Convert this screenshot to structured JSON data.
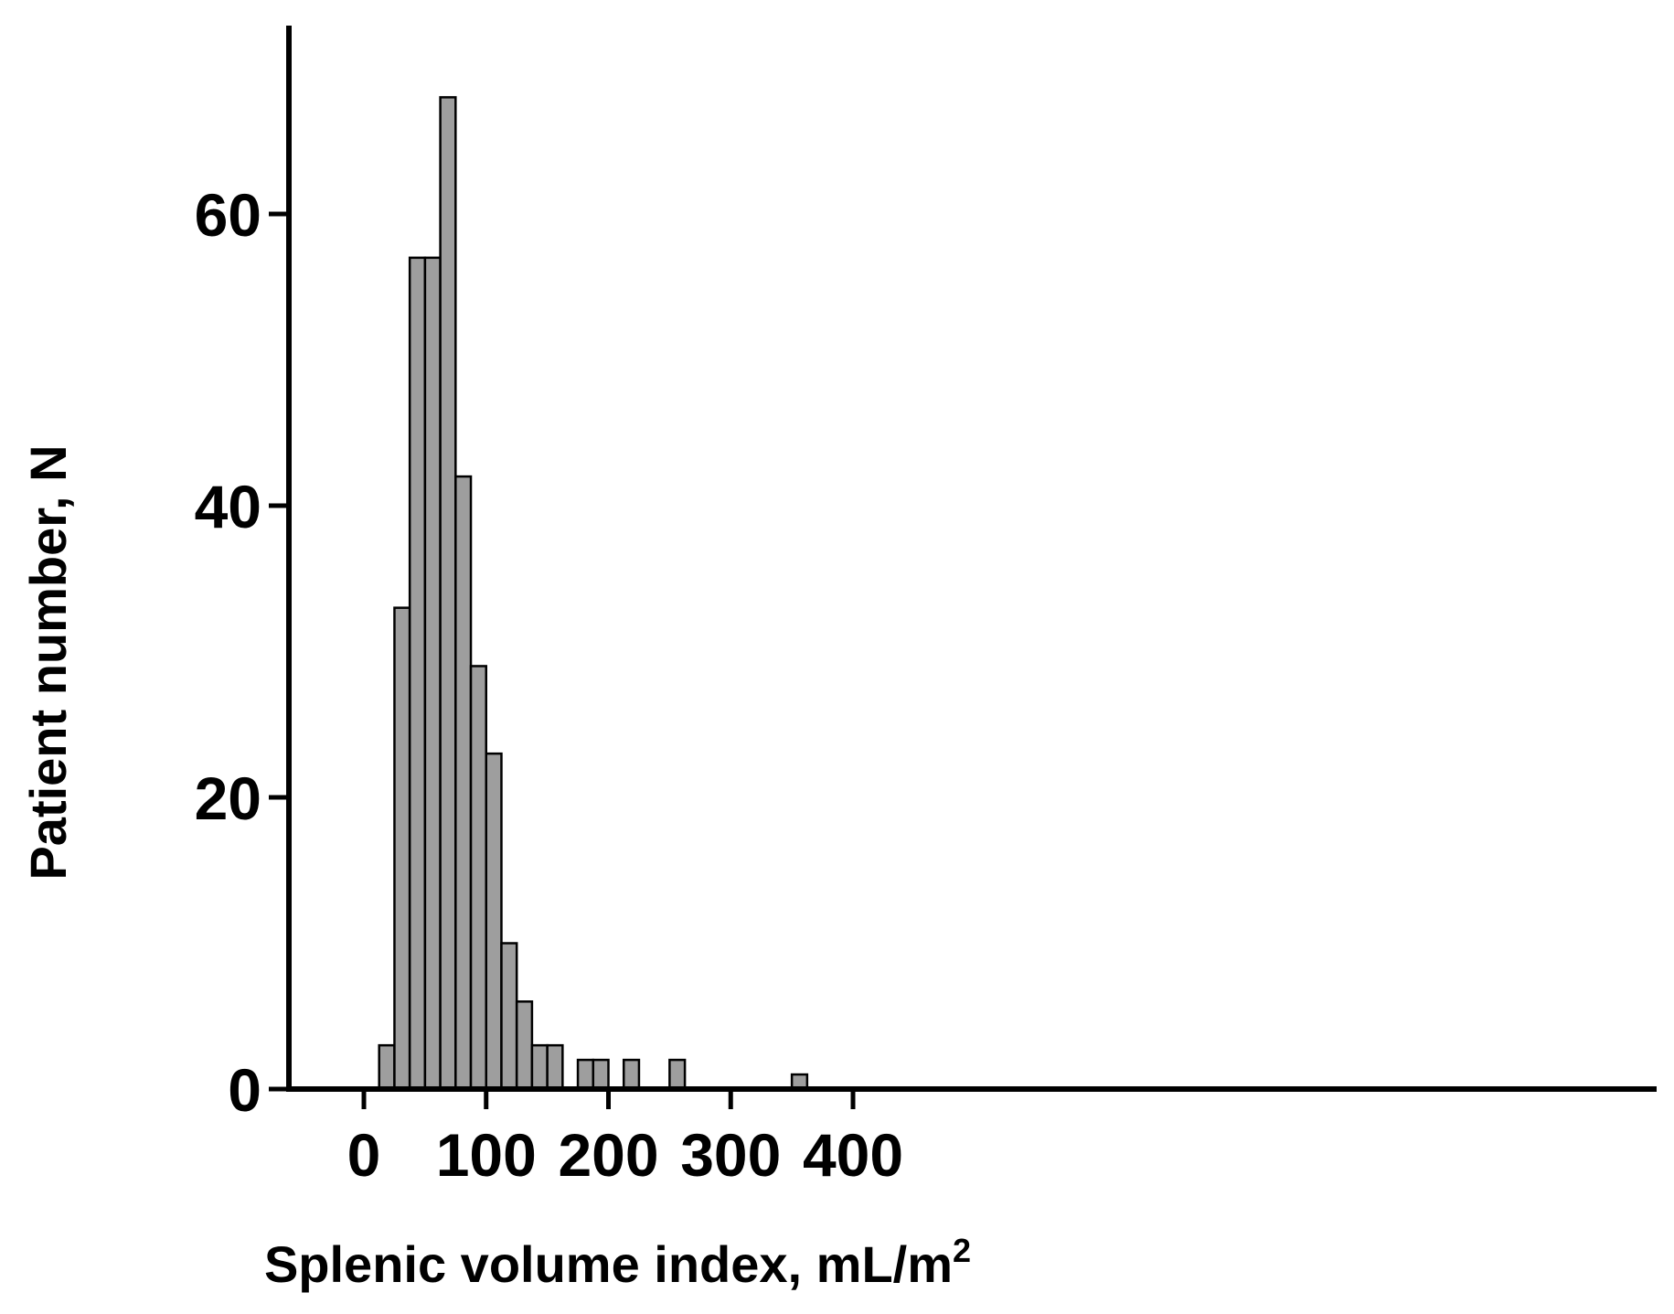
{
  "chart_data": {
    "type": "bar",
    "subtype": "histogram",
    "bin_width": 12.5,
    "bin_starts": [
      0,
      12.5,
      25,
      37.5,
      50,
      62.5,
      75,
      87.5,
      100,
      112.5,
      125,
      137.5,
      150,
      162.5,
      175,
      187.5,
      200,
      212.5,
      225,
      237.5,
      250,
      262.5,
      275,
      287.5,
      300,
      312.5,
      325,
      337.5,
      350,
      362.5,
      375,
      387.5
    ],
    "values": [
      0,
      3,
      33,
      57,
      57,
      68,
      42,
      29,
      23,
      10,
      6,
      3,
      3,
      0,
      2,
      2,
      0,
      2,
      0,
      0,
      2,
      0,
      0,
      0,
      0,
      0,
      0,
      0,
      1,
      0,
      0,
      0
    ],
    "title": "",
    "xlabel_main": "Splenic volume index, mL/m",
    "xlabel_superscript": "2",
    "ylabel": "Patient number, N",
    "xlim": [
      -23,
      423
    ],
    "ylim": [
      0,
      73
    ],
    "xticks": [
      0,
      100,
      200,
      300,
      400
    ],
    "xtick_labels": [
      "0",
      "100",
      "200",
      "300",
      "400"
    ],
    "yticks": [
      0,
      20,
      40,
      60
    ],
    "ytick_labels": [
      "0",
      "20",
      "40",
      "60"
    ],
    "grid": false,
    "legend": "none",
    "bar_color": "#9e9e9e",
    "edge_color": "#000000"
  }
}
